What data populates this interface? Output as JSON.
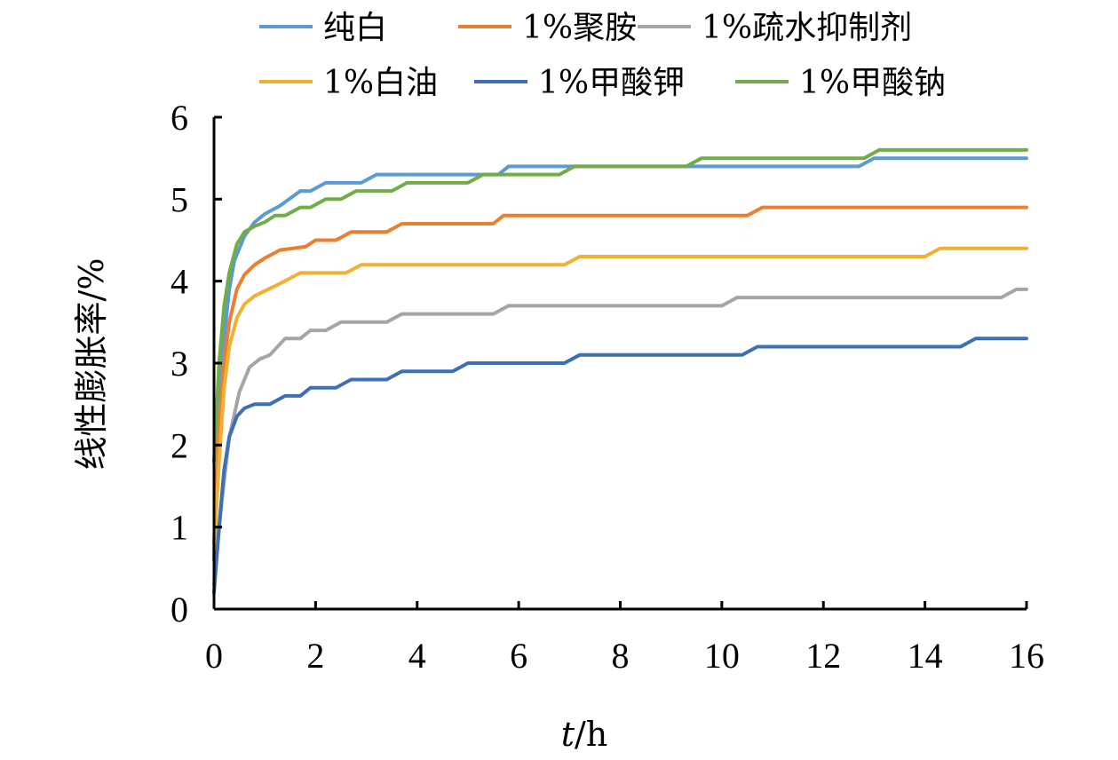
{
  "chart_data": {
    "type": "line",
    "xlabel_var": "t",
    "xlabel_unit": "/h",
    "ylabel": "线性膨胀率/%",
    "xlim": [
      0,
      16
    ],
    "ylim": [
      0,
      6
    ],
    "xticks": [
      0,
      2,
      4,
      6,
      8,
      10,
      12,
      14,
      16
    ],
    "yticks": [
      0,
      1,
      2,
      3,
      4,
      5,
      6
    ],
    "grid": false,
    "legend_position": "top",
    "series": [
      {
        "name": "纯白",
        "color": "#5B9BD5",
        "points": [
          [
            0,
            0.6
          ],
          [
            0.1,
            2.3
          ],
          [
            0.2,
            3.3
          ],
          [
            0.3,
            3.9
          ],
          [
            0.4,
            4.25
          ],
          [
            0.6,
            4.55
          ],
          [
            0.8,
            4.72
          ],
          [
            1.0,
            4.82
          ],
          [
            1.3,
            4.92
          ],
          [
            1.7,
            5.1
          ],
          [
            1.9,
            5.1
          ],
          [
            2.2,
            5.2
          ],
          [
            2.9,
            5.2
          ],
          [
            3.2,
            5.3
          ],
          [
            5.6,
            5.3
          ],
          [
            5.8,
            5.4
          ],
          [
            12.7,
            5.4
          ],
          [
            13.0,
            5.5
          ],
          [
            16,
            5.5
          ]
        ]
      },
      {
        "name": "1%聚胺",
        "color": "#ED7D31",
        "points": [
          [
            0,
            0.8
          ],
          [
            0.1,
            2.2
          ],
          [
            0.2,
            3.0
          ],
          [
            0.3,
            3.5
          ],
          [
            0.45,
            3.9
          ],
          [
            0.6,
            4.08
          ],
          [
            0.8,
            4.2
          ],
          [
            1.0,
            4.28
          ],
          [
            1.3,
            4.38
          ],
          [
            1.8,
            4.42
          ],
          [
            2.0,
            4.5
          ],
          [
            2.4,
            4.5
          ],
          [
            2.7,
            4.6
          ],
          [
            3.4,
            4.6
          ],
          [
            3.7,
            4.7
          ],
          [
            5.5,
            4.7
          ],
          [
            5.7,
            4.8
          ],
          [
            10.5,
            4.8
          ],
          [
            10.8,
            4.9
          ],
          [
            16,
            4.9
          ]
        ]
      },
      {
        "name": "1%疏水抑制剂",
        "color": "#A5A5A5",
        "points": [
          [
            0,
            0.3
          ],
          [
            0.15,
            1.3
          ],
          [
            0.3,
            2.1
          ],
          [
            0.5,
            2.65
          ],
          [
            0.7,
            2.95
          ],
          [
            0.9,
            3.05
          ],
          [
            1.1,
            3.1
          ],
          [
            1.4,
            3.3
          ],
          [
            1.7,
            3.3
          ],
          [
            1.9,
            3.4
          ],
          [
            2.2,
            3.4
          ],
          [
            2.5,
            3.5
          ],
          [
            3.4,
            3.5
          ],
          [
            3.7,
            3.6
          ],
          [
            5.5,
            3.6
          ],
          [
            5.8,
            3.7
          ],
          [
            10.0,
            3.7
          ],
          [
            10.3,
            3.8
          ],
          [
            15.5,
            3.8
          ],
          [
            15.8,
            3.9
          ],
          [
            16,
            3.9
          ]
        ]
      },
      {
        "name": "1%白油",
        "color": "#F0B030",
        "points": [
          [
            0,
            0.7
          ],
          [
            0.1,
            1.8
          ],
          [
            0.2,
            2.7
          ],
          [
            0.3,
            3.2
          ],
          [
            0.45,
            3.55
          ],
          [
            0.6,
            3.72
          ],
          [
            0.8,
            3.82
          ],
          [
            1.0,
            3.88
          ],
          [
            1.3,
            3.97
          ],
          [
            1.7,
            4.1
          ],
          [
            2.6,
            4.1
          ],
          [
            2.9,
            4.2
          ],
          [
            6.9,
            4.2
          ],
          [
            7.2,
            4.3
          ],
          [
            14.0,
            4.3
          ],
          [
            14.3,
            4.4
          ],
          [
            16,
            4.4
          ]
        ]
      },
      {
        "name": "1%甲酸钾",
        "color": "#3D6FB6",
        "points": [
          [
            0,
            0.2
          ],
          [
            0.1,
            1.0
          ],
          [
            0.2,
            1.7
          ],
          [
            0.3,
            2.1
          ],
          [
            0.45,
            2.35
          ],
          [
            0.6,
            2.45
          ],
          [
            0.8,
            2.5
          ],
          [
            1.1,
            2.5
          ],
          [
            1.4,
            2.6
          ],
          [
            1.7,
            2.6
          ],
          [
            1.9,
            2.7
          ],
          [
            2.4,
            2.7
          ],
          [
            2.7,
            2.8
          ],
          [
            3.4,
            2.8
          ],
          [
            3.7,
            2.9
          ],
          [
            4.7,
            2.9
          ],
          [
            5.0,
            3.0
          ],
          [
            6.9,
            3.0
          ],
          [
            7.2,
            3.1
          ],
          [
            10.4,
            3.1
          ],
          [
            10.7,
            3.2
          ],
          [
            14.7,
            3.2
          ],
          [
            15.0,
            3.3
          ],
          [
            16,
            3.3
          ]
        ]
      },
      {
        "name": "1%甲酸钠",
        "color": "#70AD47",
        "points": [
          [
            0,
            1.8
          ],
          [
            0.1,
            3.0
          ],
          [
            0.2,
            3.7
          ],
          [
            0.3,
            4.1
          ],
          [
            0.45,
            4.45
          ],
          [
            0.6,
            4.6
          ],
          [
            0.8,
            4.67
          ],
          [
            1.0,
            4.72
          ],
          [
            1.2,
            4.8
          ],
          [
            1.4,
            4.8
          ],
          [
            1.7,
            4.9
          ],
          [
            1.9,
            4.9
          ],
          [
            2.2,
            5.0
          ],
          [
            2.5,
            5.0
          ],
          [
            2.8,
            5.1
          ],
          [
            3.5,
            5.1
          ],
          [
            3.8,
            5.2
          ],
          [
            5.0,
            5.2
          ],
          [
            5.3,
            5.3
          ],
          [
            6.8,
            5.3
          ],
          [
            7.1,
            5.4
          ],
          [
            9.3,
            5.4
          ],
          [
            9.6,
            5.5
          ],
          [
            12.8,
            5.5
          ],
          [
            13.1,
            5.6
          ],
          [
            16,
            5.6
          ]
        ]
      }
    ]
  }
}
